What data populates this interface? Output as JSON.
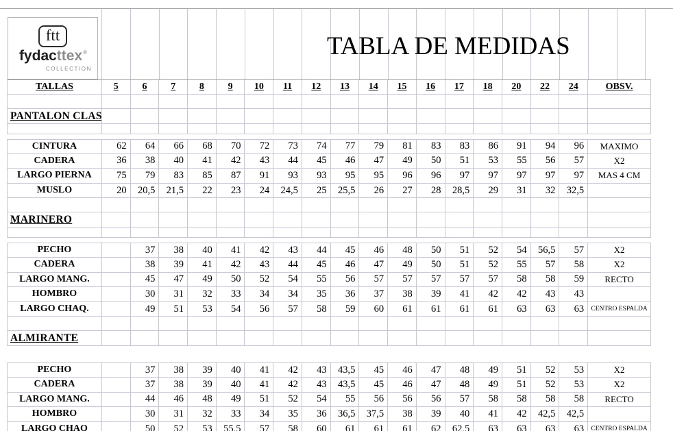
{
  "logo": {
    "mark": "ftt",
    "brand_black": "fydac",
    "brand_gray": "ttex",
    "registered": "®",
    "subtitle": "COLLECTION"
  },
  "title": "TABLA DE MEDIDAS",
  "header": {
    "label": "TALLAS",
    "sizes": [
      "5",
      "6",
      "7",
      "8",
      "9",
      "10",
      "11",
      "12",
      "13",
      "14",
      "15",
      "16",
      "17",
      "18",
      "20",
      "22",
      "24"
    ],
    "obsv": "OBSV."
  },
  "sections": [
    {
      "name": "PANTALON CLASIC",
      "rows": [
        {
          "label": "CINTURA",
          "values": [
            "62",
            "64",
            "66",
            "68",
            "70",
            "72",
            "73",
            "74",
            "77",
            "79",
            "81",
            "83",
            "83",
            "86",
            "91",
            "94",
            "96"
          ],
          "obsv": "MAXIMO"
        },
        {
          "label": "CADERA",
          "values": [
            "36",
            "38",
            "40",
            "41",
            "42",
            "43",
            "44",
            "45",
            "46",
            "47",
            "49",
            "50",
            "51",
            "53",
            "55",
            "56",
            "57"
          ],
          "obsv": "X2"
        },
        {
          "label": "LARGO PIERNA",
          "values": [
            "75",
            "79",
            "83",
            "85",
            "87",
            "91",
            "93",
            "93",
            "95",
            "95",
            "96",
            "96",
            "97",
            "97",
            "97",
            "97",
            "97"
          ],
          "obsv": "MAS 4 CM"
        },
        {
          "label": "MUSLO",
          "values": [
            "20",
            "20,5",
            "21,5",
            "22",
            "23",
            "24",
            "24,5",
            "25",
            "25,5",
            "26",
            "27",
            "28",
            "28,5",
            "29",
            "31",
            "32",
            "32,5"
          ],
          "obsv": ""
        }
      ]
    },
    {
      "name": "MARINERO",
      "rows": [
        {
          "label": "PECHO",
          "values": [
            "",
            "37",
            "38",
            "40",
            "41",
            "42",
            "43",
            "44",
            "45",
            "46",
            "48",
            "50",
            "51",
            "52",
            "54",
            "56,5",
            "57"
          ],
          "obsv": "X2"
        },
        {
          "label": "CADERA",
          "values": [
            "",
            "38",
            "39",
            "41",
            "42",
            "43",
            "44",
            "45",
            "46",
            "47",
            "49",
            "50",
            "51",
            "52",
            "55",
            "57",
            "58"
          ],
          "obsv": "X2"
        },
        {
          "label": "LARGO MANG.",
          "values": [
            "",
            "45",
            "47",
            "49",
            "50",
            "52",
            "54",
            "55",
            "56",
            "57",
            "57",
            "57",
            "57",
            "57",
            "58",
            "58",
            "59"
          ],
          "obsv": "RECTO"
        },
        {
          "label": "HOMBRO",
          "values": [
            "",
            "30",
            "31",
            "32",
            "33",
            "34",
            "34",
            "35",
            "36",
            "37",
            "38",
            "39",
            "41",
            "42",
            "42",
            "43",
            "43"
          ],
          "obsv": ""
        },
        {
          "label": "LARGO CHAQ.",
          "values": [
            "",
            "49",
            "51",
            "53",
            "54",
            "56",
            "57",
            "58",
            "59",
            "60",
            "61",
            "61",
            "61",
            "61",
            "63",
            "63",
            "63"
          ],
          "obsv": "CENTRO ESPALDA"
        }
      ]
    },
    {
      "name": "ALMIRANTE",
      "rows": [
        {
          "label": "PECHO",
          "values": [
            "",
            "37",
            "38",
            "39",
            "40",
            "41",
            "42",
            "43",
            "43,5",
            "45",
            "46",
            "47",
            "48",
            "49",
            "51",
            "52",
            "53"
          ],
          "obsv": "X2"
        },
        {
          "label": "CADERA",
          "values": [
            "",
            "37",
            "38",
            "39",
            "40",
            "41",
            "42",
            "43",
            "43,5",
            "45",
            "46",
            "47",
            "48",
            "49",
            "51",
            "52",
            "53"
          ],
          "obsv": "X2"
        },
        {
          "label": "LARGO MANG.",
          "values": [
            "",
            "44",
            "46",
            "48",
            "49",
            "51",
            "52",
            "54",
            "55",
            "56",
            "56",
            "56",
            "57",
            "58",
            "58",
            "58",
            "58"
          ],
          "obsv": "RECTO"
        },
        {
          "label": "HOMBRO",
          "values": [
            "",
            "30",
            "31",
            "32",
            "33",
            "34",
            "35",
            "36",
            "36,5",
            "37,5",
            "38",
            "39",
            "40",
            "41",
            "42",
            "42,5",
            "42,5"
          ],
          "obsv": ""
        },
        {
          "label": "LARGO CHAQ",
          "values": [
            "",
            "50",
            "52",
            "53",
            "55,5",
            "57",
            "58",
            "60",
            "61",
            "61",
            "61",
            "62",
            "62,5",
            "63",
            "63",
            "63",
            "63"
          ],
          "obsv": "CENTRO ESPALDA"
        }
      ]
    }
  ]
}
